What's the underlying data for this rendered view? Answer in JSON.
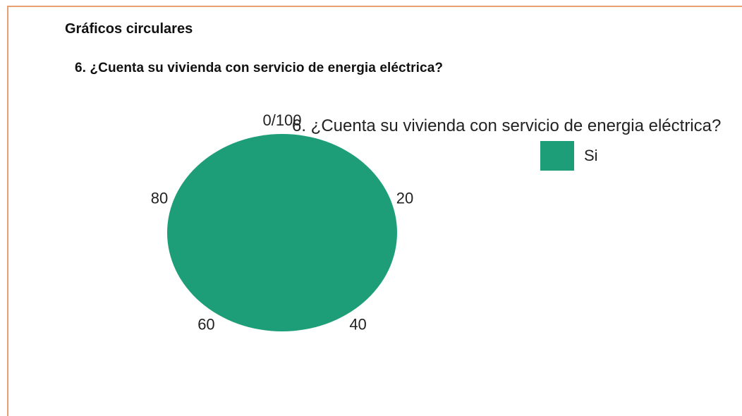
{
  "page": {
    "section_title": "Gráficos circulares",
    "question": "6. ¿Cuenta su vivienda con servicio de energia eléctrica?"
  },
  "chart_data": {
    "type": "pie",
    "title": "6. ¿Cuenta su vivienda con servicio de energia eléctrica?",
    "categories": [
      "Si"
    ],
    "values": [
      100
    ],
    "colors": [
      "#1e9e78"
    ],
    "legend": "top-right",
    "angular_ticks": [
      "0/100",
      "20",
      "40",
      "60",
      "80"
    ],
    "angular_tick_values": [
      0,
      20,
      40,
      60,
      80
    ],
    "range": [
      0,
      100
    ]
  }
}
